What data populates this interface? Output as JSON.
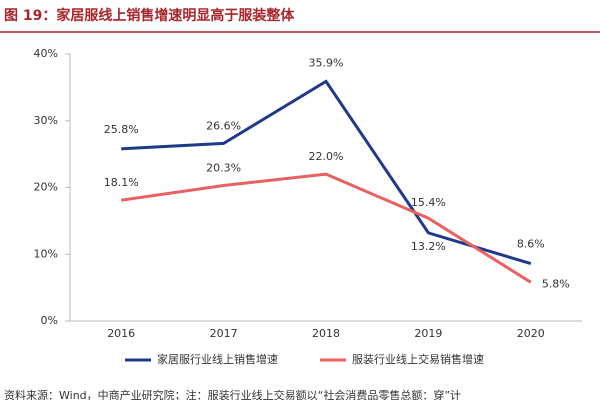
{
  "chart_data": {
    "type": "line",
    "title": "图 19：家居服线上销售增速明显高于服装整体",
    "categories": [
      "2016",
      "2017",
      "2018",
      "2019",
      "2020"
    ],
    "series": [
      {
        "name": "家居服行业线上销售增速",
        "color": "#1f3a8a",
        "values": [
          25.8,
          26.6,
          35.9,
          13.2,
          8.6
        ],
        "value_labels": [
          "25.8%",
          "26.6%",
          "35.9%",
          "13.2%",
          "8.6%"
        ]
      },
      {
        "name": "服装行业线上交易销售增速",
        "color": "#e8605f",
        "values": [
          18.1,
          20.3,
          22.0,
          15.4,
          5.8
        ],
        "value_labels": [
          "18.1%",
          "20.3%",
          "22.0%",
          "15.4%",
          "5.8%"
        ]
      }
    ],
    "ylim": [
      0,
      40
    ],
    "yticks": [
      {
        "value": 0,
        "label": "0%"
      },
      {
        "value": 10,
        "label": "10%"
      },
      {
        "value": 20,
        "label": "20%"
      },
      {
        "value": 30,
        "label": "30%"
      },
      {
        "value": 40,
        "label": "40%"
      }
    ],
    "legend": "bottom",
    "source": "资料来源：Wind，中商产业研究院；注：服装行业线上交易额以“社会消费品零售总额：穿”计"
  }
}
